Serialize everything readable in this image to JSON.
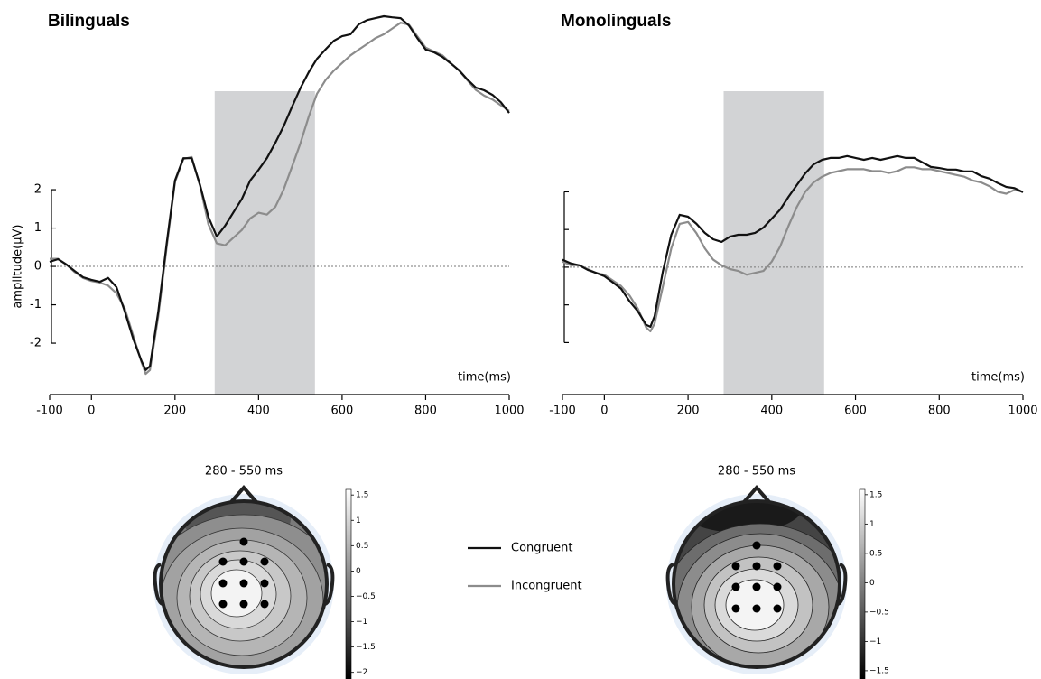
{
  "chart_data": [
    {
      "type": "line",
      "title": "Bilinguals",
      "ylabel": "amplitude(μV)",
      "xlabel": "time(ms)",
      "xlim": [
        -100,
        1000
      ],
      "xticks": [
        -100,
        0,
        200,
        400,
        600,
        800,
        1000
      ],
      "ylim": [
        -3.34,
        6.59
      ],
      "yticks": [
        2,
        1,
        0,
        -1,
        -2
      ],
      "show_ytick_labels": true,
      "window": [
        295,
        535
      ],
      "x": [
        -100,
        -80,
        -60,
        -40,
        -20,
        0,
        20,
        40,
        60,
        80,
        100,
        120,
        130,
        140,
        160,
        180,
        200,
        220,
        240,
        260,
        280,
        300,
        320,
        340,
        360,
        380,
        400,
        420,
        440,
        460,
        480,
        500,
        520,
        540,
        560,
        580,
        600,
        620,
        640,
        660,
        680,
        700,
        720,
        740,
        760,
        780,
        800,
        820,
        840,
        860,
        880,
        900,
        920,
        940,
        960,
        980,
        1000
      ],
      "series": [
        {
          "name": "Congruent",
          "color": "#111111",
          "values": [
            0.12,
            0.19,
            0.05,
            -0.12,
            -0.28,
            -0.35,
            -0.4,
            -0.3,
            -0.54,
            -1.18,
            -1.88,
            -2.47,
            -2.7,
            -2.6,
            -1.18,
            0.6,
            2.24,
            2.82,
            2.82,
            2.12,
            1.29,
            0.78,
            1.06,
            1.41,
            1.76,
            2.24,
            2.52,
            2.82,
            3.22,
            3.65,
            4.16,
            4.64,
            5.06,
            5.41,
            5.65,
            5.88,
            6.0,
            6.05,
            6.31,
            6.42,
            6.47,
            6.52,
            6.49,
            6.47,
            6.28,
            5.95,
            5.65,
            5.58,
            5.46,
            5.29,
            5.11,
            4.87,
            4.66,
            4.59,
            4.47,
            4.28,
            4.0
          ]
        },
        {
          "name": "Incongruent",
          "color": "#8c8c8c",
          "values": [
            0.2,
            0.2,
            0.05,
            -0.15,
            -0.3,
            -0.38,
            -0.42,
            -0.5,
            -0.7,
            -1.1,
            -1.8,
            -2.5,
            -2.8,
            -2.7,
            -1.3,
            0.5,
            2.2,
            2.8,
            2.85,
            2.1,
            1.1,
            0.6,
            0.55,
            0.75,
            0.95,
            1.25,
            1.4,
            1.35,
            1.55,
            2.0,
            2.6,
            3.2,
            3.9,
            4.5,
            4.85,
            5.1,
            5.3,
            5.5,
            5.65,
            5.8,
            5.95,
            6.05,
            6.2,
            6.35,
            6.3,
            6.0,
            5.7,
            5.6,
            5.5,
            5.3,
            5.1,
            4.85,
            4.6,
            4.45,
            4.35,
            4.2,
            4.05
          ]
        }
      ]
    },
    {
      "type": "line",
      "title": "Monolinguals",
      "xlabel": "time(ms)",
      "xlim": [
        -100,
        1000
      ],
      "xticks": [
        -100,
        0,
        200,
        400,
        600,
        800,
        1000
      ],
      "ylim": [
        -3.38,
        6.73
      ],
      "yticks": [
        2,
        1,
        0,
        -1,
        -2
      ],
      "show_ytick_labels": false,
      "window": [
        285,
        525
      ],
      "x": [
        -100,
        -80,
        -60,
        -40,
        -20,
        0,
        20,
        40,
        60,
        80,
        100,
        110,
        120,
        140,
        160,
        180,
        200,
        220,
        240,
        260,
        280,
        300,
        320,
        340,
        360,
        380,
        400,
        420,
        440,
        460,
        480,
        500,
        520,
        540,
        560,
        580,
        600,
        620,
        640,
        660,
        680,
        700,
        720,
        740,
        760,
        780,
        800,
        820,
        840,
        860,
        880,
        900,
        920,
        940,
        960,
        980,
        1000
      ],
      "series": [
        {
          "color": "#111111",
          "values": [
            0.2,
            0.1,
            0.05,
            -0.07,
            -0.15,
            -0.24,
            -0.4,
            -0.57,
            -0.9,
            -1.17,
            -1.53,
            -1.58,
            -1.3,
            -0.1,
            0.86,
            1.39,
            1.34,
            1.15,
            0.91,
            0.74,
            0.67,
            0.81,
            0.86,
            0.86,
            0.91,
            1.05,
            1.29,
            1.53,
            1.87,
            2.18,
            2.49,
            2.73,
            2.85,
            2.9,
            2.9,
            2.95,
            2.9,
            2.85,
            2.9,
            2.85,
            2.9,
            2.95,
            2.9,
            2.9,
            2.78,
            2.66,
            2.63,
            2.59,
            2.59,
            2.54,
            2.54,
            2.42,
            2.35,
            2.23,
            2.13,
            2.1,
            1.99
          ]
        },
        {
          "color": "#8c8c8c",
          "values": [
            0.15,
            0.05,
            0.05,
            -0.05,
            -0.15,
            -0.2,
            -0.35,
            -0.5,
            -0.75,
            -1.1,
            -1.6,
            -1.7,
            -1.5,
            -0.5,
            0.5,
            1.15,
            1.2,
            0.9,
            0.5,
            0.2,
            0.05,
            -0.05,
            -0.1,
            -0.2,
            -0.15,
            -0.1,
            0.15,
            0.55,
            1.1,
            1.6,
            2.0,
            2.25,
            2.4,
            2.5,
            2.55,
            2.6,
            2.6,
            2.6,
            2.55,
            2.55,
            2.5,
            2.55,
            2.65,
            2.65,
            2.6,
            2.6,
            2.55,
            2.5,
            2.45,
            2.4,
            2.3,
            2.25,
            2.15,
            2.0,
            1.95,
            2.05,
            2.0
          ]
        }
      ]
    },
    {
      "type": "topomap",
      "title": "280 - 550 ms",
      "clim": [
        -2.13,
        1.61
      ],
      "cticks": [
        1.5,
        1,
        0.5,
        0,
        {
          "value": -0.5,
          "label": "−0.5"
        },
        {
          "value": -1,
          "label": "−1"
        },
        {
          "value": -1.5,
          "label": "−1.5"
        },
        {
          "value": -2,
          "label": "−2"
        }
      ]
    },
    {
      "type": "topomap",
      "title": "280 - 550 ms",
      "clim": [
        -1.64,
        1.59
      ],
      "cticks": [
        1.5,
        1,
        0.5,
        0,
        {
          "value": -0.5,
          "label": "−0.5"
        },
        {
          "value": -1,
          "label": "−1"
        },
        {
          "value": -1.5,
          "label": "−1.5"
        }
      ]
    }
  ]
}
